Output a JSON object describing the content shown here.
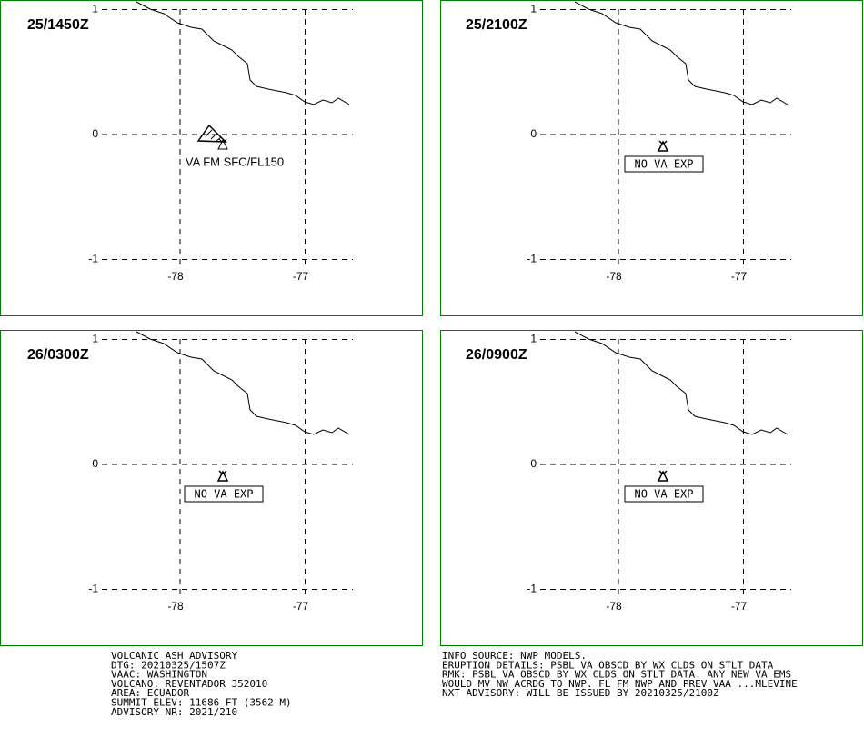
{
  "axes": {
    "xticks": [
      -78,
      -77
    ],
    "yticks": [
      1,
      0,
      -1
    ]
  },
  "panels": [
    {
      "time": "25/1450Z",
      "label": "VA FM SFC/FL150"
    },
    {
      "time": "25/2100Z",
      "label": "NO VA EXP"
    },
    {
      "time": "26/0300Z",
      "label": "NO VA EXP"
    },
    {
      "time": "26/0900Z",
      "label": "NO VA EXP"
    }
  ],
  "advisory_left": [
    "VOLCANIC ASH ADVISORY",
    "DTG: 20210325/1507Z",
    "VAAC: WASHINGTON",
    "VOLCANO: REVENTADOR 352010",
    "AREA: ECUADOR",
    "SUMMIT ELEV: 11686 FT (3562 M)",
    "ADVISORY NR: 2021/210"
  ],
  "advisory_right": [
    "INFO SOURCE: NWP MODELS.",
    "ERUPTION DETAILS: PSBL VA OBSCD BY WX CLDS ON STLT DATA",
    "RMK: PSBL VA OBSCD BY WX CLDS ON STLT DATA. ANY NEW VA EMS",
    "WOULD MV NW ACRDG TO NWP. FL FM NWP AND PREV VAA ...MLEVINE",
    "NXT ADVISORY: WILL BE ISSUED BY 20210325/2100Z"
  ]
}
